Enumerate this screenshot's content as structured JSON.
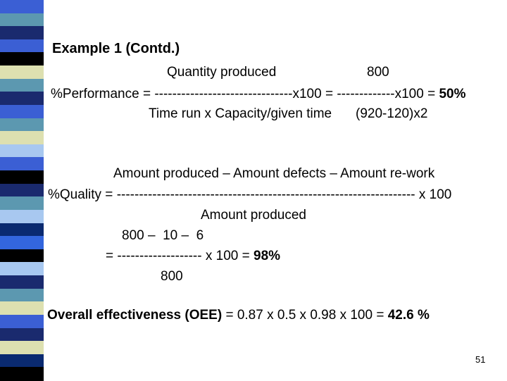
{
  "slide": {
    "title": "Example 1 (Contd.)",
    "performance": {
      "numerator": "Quantity produced",
      "numerator_value": "800",
      "label_prefix": "%Performance = ",
      "dashes_1": "-------------------------------",
      "mid": "x100 = ",
      "dashes_2": "-------------",
      "tail": "x100 = ",
      "result": "50%",
      "denominator": "Time run x Capacity/given time",
      "denominator_value": "(920-120)x2"
    },
    "quality": {
      "numerator": "Amount produced – Amount defects – Amount re-work",
      "label_prefix": "%Quality = ",
      "dashes": "-------------------------------------------------------------------",
      "tail": " x 100",
      "denominator": "Amount produced",
      "calc_numerator": "800 –  10 –  6",
      "calc_eq": "= ",
      "calc_dashes": "-------------------",
      "calc_tail": " x 100 = ",
      "calc_result": "98%",
      "calc_denominator": "800"
    },
    "oee": {
      "label": "Overall effectiveness (OEE)",
      "formula": " = 0.87 x 0.5 x 0.98 x 100 = ",
      "result": "42.6 %"
    },
    "page_number": "51"
  },
  "colors": {
    "stripe_palette": [
      "#1a2a6e",
      "#3b5fd4",
      "#000000",
      "#dde0b0",
      "#5c98b0",
      "#a8c8f0",
      "#0a2a70",
      "#3366dd"
    ]
  }
}
